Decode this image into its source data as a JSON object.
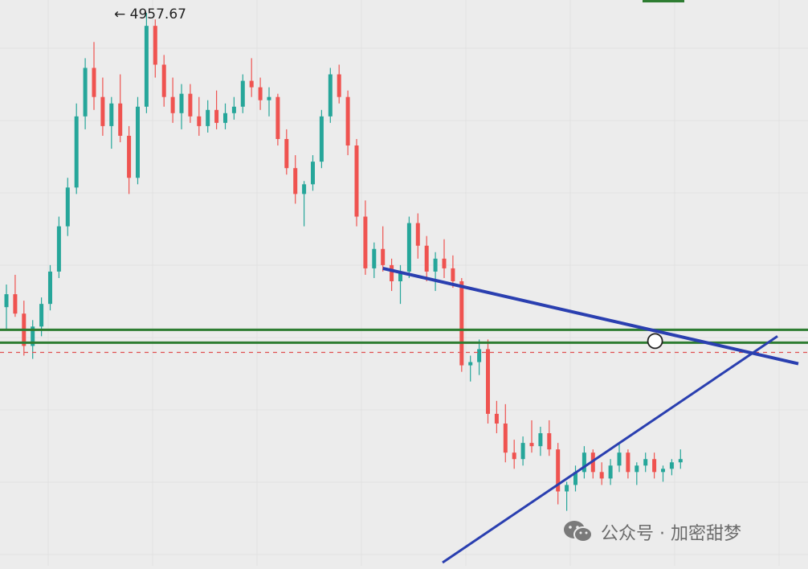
{
  "chart_data": {
    "type": "candlestick",
    "annotation_high": "4957.67",
    "colors": {
      "up": "#26a69a",
      "down": "#ef5350",
      "trendline": "#2a3fb0",
      "support": "#2e7d32",
      "current_price_line": "#e05050",
      "background": "#ececec",
      "grid": "#e2e2e2"
    },
    "grid": true,
    "legend": "none",
    "candles": [
      [
        4050,
        4120,
        3980,
        4090
      ],
      [
        4090,
        4150,
        4020,
        4030
      ],
      [
        4030,
        4070,
        3900,
        3930
      ],
      [
        3930,
        4010,
        3890,
        3990
      ],
      [
        3990,
        4080,
        3960,
        4060
      ],
      [
        4060,
        4180,
        4040,
        4160
      ],
      [
        4160,
        4330,
        4140,
        4300
      ],
      [
        4300,
        4450,
        4270,
        4420
      ],
      [
        4420,
        4680,
        4400,
        4640
      ],
      [
        4640,
        4820,
        4600,
        4790
      ],
      [
        4790,
        4870,
        4660,
        4700
      ],
      [
        4700,
        4760,
        4580,
        4610
      ],
      [
        4610,
        4700,
        4540,
        4680
      ],
      [
        4680,
        4770,
        4560,
        4580
      ],
      [
        4580,
        4610,
        4400,
        4450
      ],
      [
        4450,
        4700,
        4430,
        4670
      ],
      [
        4670,
        4960,
        4650,
        4920
      ],
      [
        4920,
        4940,
        4760,
        4800
      ],
      [
        4800,
        4830,
        4670,
        4700
      ],
      [
        4700,
        4760,
        4620,
        4650
      ],
      [
        4650,
        4740,
        4600,
        4710
      ],
      [
        4710,
        4740,
        4620,
        4640
      ],
      [
        4640,
        4700,
        4580,
        4610
      ],
      [
        4610,
        4690,
        4590,
        4660
      ],
      [
        4660,
        4720,
        4600,
        4620
      ],
      [
        4620,
        4680,
        4600,
        4650
      ],
      [
        4650,
        4700,
        4630,
        4670
      ],
      [
        4670,
        4770,
        4650,
        4750
      ],
      [
        4750,
        4820,
        4700,
        4730
      ],
      [
        4730,
        4760,
        4660,
        4690
      ],
      [
        4690,
        4730,
        4640,
        4700
      ],
      [
        4700,
        4710,
        4550,
        4570
      ],
      [
        4570,
        4600,
        4460,
        4480
      ],
      [
        4480,
        4520,
        4370,
        4400
      ],
      [
        4400,
        4440,
        4300,
        4430
      ],
      [
        4430,
        4520,
        4410,
        4500
      ],
      [
        4500,
        4660,
        4480,
        4640
      ],
      [
        4640,
        4790,
        4620,
        4770
      ],
      [
        4770,
        4800,
        4680,
        4700
      ],
      [
        4700,
        4720,
        4520,
        4550
      ],
      [
        4550,
        4570,
        4300,
        4330
      ],
      [
        4330,
        4380,
        4150,
        4170
      ],
      [
        4170,
        4250,
        4140,
        4230
      ],
      [
        4230,
        4300,
        4160,
        4180
      ],
      [
        4180,
        4200,
        4100,
        4130
      ],
      [
        4130,
        4180,
        4060,
        4160
      ],
      [
        4160,
        4330,
        4140,
        4310
      ],
      [
        4310,
        4340,
        4200,
        4240
      ],
      [
        4240,
        4270,
        4130,
        4160
      ],
      [
        4160,
        4220,
        4100,
        4200
      ],
      [
        4200,
        4260,
        4140,
        4170
      ],
      [
        4170,
        4210,
        4110,
        4130
      ],
      [
        4130,
        4140,
        3850,
        3870
      ],
      [
        3870,
        3900,
        3820,
        3880
      ],
      [
        3880,
        3950,
        3840,
        3920
      ],
      [
        3920,
        3950,
        3690,
        3720
      ],
      [
        3720,
        3760,
        3660,
        3690
      ],
      [
        3690,
        3750,
        3570,
        3600
      ],
      [
        3600,
        3640,
        3550,
        3580
      ],
      [
        3580,
        3650,
        3560,
        3630
      ],
      [
        3630,
        3700,
        3600,
        3620
      ],
      [
        3620,
        3680,
        3590,
        3660
      ],
      [
        3660,
        3700,
        3590,
        3610
      ],
      [
        3610,
        3630,
        3440,
        3480
      ],
      [
        3480,
        3510,
        3420,
        3500
      ],
      [
        3500,
        3560,
        3480,
        3540
      ],
      [
        3540,
        3620,
        3520,
        3600
      ],
      [
        3600,
        3610,
        3520,
        3540
      ],
      [
        3540,
        3570,
        3500,
        3520
      ],
      [
        3520,
        3580,
        3500,
        3560
      ],
      [
        3560,
        3630,
        3540,
        3600
      ],
      [
        3600,
        3610,
        3520,
        3540
      ],
      [
        3540,
        3570,
        3500,
        3560
      ],
      [
        3560,
        3600,
        3540,
        3580
      ],
      [
        3580,
        3600,
        3520,
        3540
      ],
      [
        3540,
        3560,
        3510,
        3550
      ],
      [
        3550,
        3580,
        3530,
        3570
      ],
      [
        3570,
        3610,
        3550,
        3580
      ]
    ]
  }
}
